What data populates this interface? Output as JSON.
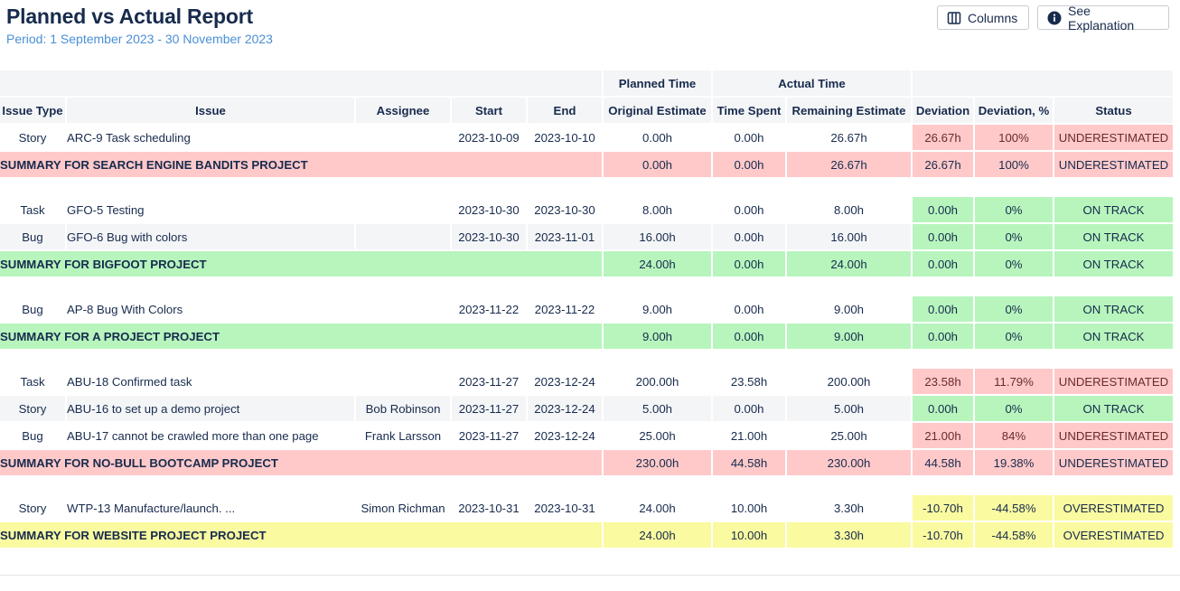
{
  "header": {
    "title": "Planned vs Actual Report",
    "period": "Period: 1 September 2023 - 30 November 2023",
    "columns_label": "Columns",
    "explanation_label": "See Explanation"
  },
  "table": {
    "group_headers": {
      "planned": "Planned Time",
      "actual": "Actual Time"
    },
    "columns": {
      "issue_type": "Issue Type",
      "issue": "Issue",
      "assignee": "Assignee",
      "start": "Start",
      "end": "End",
      "original": "Original Estimate",
      "spent": "Time Spent",
      "remaining": "Remaining Estimate",
      "deviation": "Deviation",
      "deviation_pct": "Deviation, %",
      "status": "Status"
    },
    "groups": [
      {
        "rows": [
          {
            "type": "Story",
            "issue": "ARC-9 Task scheduling",
            "assignee": "",
            "start": "2023-10-09",
            "end": "2023-10-10",
            "original": "0.00h",
            "spent": "0.00h",
            "remaining": "26.67h",
            "deviation": "26.67h",
            "deviation_pct": "100%",
            "status": "UNDERESTIMATED",
            "color": "red"
          }
        ],
        "summary": {
          "label": "SUMMARY FOR SEARCH ENGINE BANDITS PROJECT",
          "original": "0.00h",
          "spent": "0.00h",
          "remaining": "26.67h",
          "deviation": "26.67h",
          "deviation_pct": "100%",
          "status": "UNDERESTIMATED",
          "color": "red"
        }
      },
      {
        "rows": [
          {
            "type": "Task",
            "issue": "GFO-5 Testing",
            "assignee": "",
            "start": "2023-10-30",
            "end": "2023-10-30",
            "original": "8.00h",
            "spent": "0.00h",
            "remaining": "8.00h",
            "deviation": "0.00h",
            "deviation_pct": "0%",
            "status": "ON TRACK",
            "color": "green"
          },
          {
            "type": "Bug",
            "issue": "GFO-6 Bug with colors",
            "assignee": "",
            "start": "2023-10-30",
            "end": "2023-11-01",
            "original": "16.00h",
            "spent": "0.00h",
            "remaining": "16.00h",
            "deviation": "0.00h",
            "deviation_pct": "0%",
            "status": "ON TRACK",
            "color": "green"
          }
        ],
        "summary": {
          "label": "SUMMARY FOR BIGFOOT PROJECT",
          "original": "24.00h",
          "spent": "0.00h",
          "remaining": "24.00h",
          "deviation": "0.00h",
          "deviation_pct": "0%",
          "status": "ON TRACK",
          "color": "green"
        }
      },
      {
        "rows": [
          {
            "type": "Bug",
            "issue": "AP-8 Bug With Colors",
            "assignee": "",
            "start": "2023-11-22",
            "end": "2023-11-22",
            "original": "9.00h",
            "spent": "0.00h",
            "remaining": "9.00h",
            "deviation": "0.00h",
            "deviation_pct": "0%",
            "status": "ON TRACK",
            "color": "green"
          }
        ],
        "summary": {
          "label": "SUMMARY FOR A PROJECT PROJECT",
          "original": "9.00h",
          "spent": "0.00h",
          "remaining": "9.00h",
          "deviation": "0.00h",
          "deviation_pct": "0%",
          "status": "ON TRACK",
          "color": "green"
        }
      },
      {
        "rows": [
          {
            "type": "Task",
            "issue": "ABU-18 Confirmed task",
            "assignee": "",
            "start": "2023-11-27",
            "end": "2023-12-24",
            "original": "200.00h",
            "spent": "23.58h",
            "remaining": "200.00h",
            "deviation": "23.58h",
            "deviation_pct": "11.79%",
            "status": "UNDERESTIMATED",
            "color": "red"
          },
          {
            "type": "Story",
            "issue": "ABU-16 to set up a demo project",
            "assignee": "Bob Robinson",
            "start": "2023-11-27",
            "end": "2023-12-24",
            "original": "5.00h",
            "spent": "0.00h",
            "remaining": "5.00h",
            "deviation": "0.00h",
            "deviation_pct": "0%",
            "status": "ON TRACK",
            "color": "green"
          },
          {
            "type": "Bug",
            "issue": "ABU-17 cannot be crawled more than one page",
            "assignee": "Frank Larsson",
            "start": "2023-11-27",
            "end": "2023-12-24",
            "original": "25.00h",
            "spent": "21.00h",
            "remaining": "25.00h",
            "deviation": "21.00h",
            "deviation_pct": "84%",
            "status": "UNDERESTIMATED",
            "color": "red"
          }
        ],
        "summary": {
          "label": "SUMMARY FOR NO-BULL BOOTCAMP PROJECT",
          "original": "230.00h",
          "spent": "44.58h",
          "remaining": "230.00h",
          "deviation": "44.58h",
          "deviation_pct": "19.38%",
          "status": "UNDERESTIMATED",
          "color": "red"
        }
      },
      {
        "rows": [
          {
            "type": "Story",
            "issue": "WTP-13 Manufacture/launch. ...",
            "assignee": "Simon Richman",
            "start": "2023-10-31",
            "end": "2023-10-31",
            "original": "24.00h",
            "spent": "10.00h",
            "remaining": "3.30h",
            "deviation": "-10.70h",
            "deviation_pct": "-44.58%",
            "status": "OVERESTIMATED",
            "color": "yellow"
          }
        ],
        "summary": {
          "label": "SUMMARY FOR WEBSITE PROJECT PROJECT",
          "original": "24.00h",
          "spent": "10.00h",
          "remaining": "3.30h",
          "deviation": "-10.70h",
          "deviation_pct": "-44.58%",
          "status": "OVERESTIMATED",
          "color": "yellow"
        }
      }
    ]
  }
}
